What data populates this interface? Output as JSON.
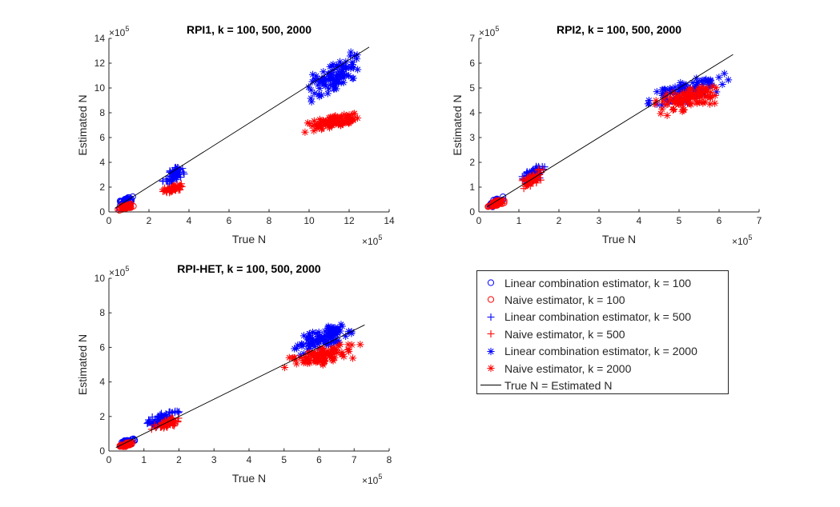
{
  "colors": {
    "linear": "#0000ff",
    "naive": "#ff0000",
    "line": "#000000",
    "axis": "#262626"
  },
  "legend": {
    "placement": "below-right",
    "entries": [
      {
        "label": "Linear combination estimator, k = 100",
        "marker": "circle",
        "color": "#0000ff"
      },
      {
        "label": "Naive estimator, k = 100",
        "marker": "circle",
        "color": "#ff0000"
      },
      {
        "label": "Linear combination estimator, k = 500",
        "marker": "plus",
        "color": "#0000ff"
      },
      {
        "label": "Naive estimator, k = 500",
        "marker": "plus",
        "color": "#ff0000"
      },
      {
        "label": "Linear combination estimator, k = 2000",
        "marker": "star",
        "color": "#0000ff"
      },
      {
        "label": "Naive estimator, k = 2000",
        "marker": "star",
        "color": "#ff0000"
      },
      {
        "label": "True N = Estimated N",
        "marker": "line",
        "color": "#000000"
      }
    ]
  },
  "chart_data": [
    {
      "type": "scatter",
      "title": "RPI1, k = 100, 500, 2000",
      "xlabel": "True N",
      "ylabel": "Estimated N",
      "xlim": [
        0,
        14
      ],
      "ylim": [
        0,
        14
      ],
      "xticks": [
        "0",
        "2",
        "4",
        "6",
        "8",
        "10",
        "12",
        "14"
      ],
      "yticks": [
        "0",
        "2",
        "4",
        "6",
        "8",
        "10",
        "12",
        "14"
      ],
      "x_exponent": "×10",
      "y_exponent": "×10",
      "exponent_power": "5",
      "grid": false,
      "diagonal": [
        [
          0.3,
          0.3
        ],
        [
          13.0,
          13.3
        ]
      ],
      "series": [
        {
          "name": "Linear combination estimator, k = 100",
          "marker": "circle",
          "color": "#0000ff",
          "x_range": [
            0.4,
            1.3
          ],
          "y_range": [
            0.1,
            1.55
          ],
          "count": 55
        },
        {
          "name": "Naive estimator, k = 100",
          "marker": "circle",
          "color": "#ff0000",
          "x_range": [
            0.4,
            1.3
          ],
          "y_range": [
            0.05,
            0.75
          ],
          "count": 55
        },
        {
          "name": "Linear combination estimator, k = 500",
          "marker": "plus",
          "color": "#0000ff",
          "x_range": [
            2.5,
            4.0
          ],
          "y_range": [
            1.7,
            4.2
          ],
          "count": 70
        },
        {
          "name": "Naive estimator, k = 500",
          "marker": "plus",
          "color": "#ff0000",
          "x_range": [
            2.5,
            4.0
          ],
          "y_range": [
            1.3,
            2.5
          ],
          "count": 70
        },
        {
          "name": "Linear combination estimator, k = 2000",
          "marker": "star",
          "color": "#0000ff",
          "x_range": [
            9.5,
            13.0
          ],
          "y_range": [
            8.0,
            13.8
          ],
          "count": 100
        },
        {
          "name": "Naive estimator, k = 2000",
          "marker": "star",
          "color": "#ff0000",
          "x_range": [
            9.3,
            13.0
          ],
          "y_range": [
            6.1,
            8.5
          ],
          "count": 100
        }
      ]
    },
    {
      "type": "scatter",
      "title": "RPI2, k = 100, 500, 2000",
      "xlabel": "True N",
      "ylabel": "Estimated N",
      "xlim": [
        0,
        7
      ],
      "ylim": [
        0,
        7
      ],
      "xticks": [
        "0",
        "1",
        "2",
        "3",
        "4",
        "5",
        "6",
        "7"
      ],
      "yticks": [
        "0",
        "1",
        "2",
        "3",
        "4",
        "5",
        "6",
        "7"
      ],
      "x_exponent": "×10",
      "y_exponent": "×10",
      "exponent_power": "5",
      "grid": false,
      "diagonal": [
        [
          0.2,
          0.2
        ],
        [
          6.35,
          6.35
        ]
      ],
      "series": [
        {
          "name": "Linear combination estimator, k = 100",
          "marker": "circle",
          "color": "#0000ff",
          "x_range": [
            0.2,
            0.7
          ],
          "y_range": [
            0.1,
            0.7
          ],
          "count": 50
        },
        {
          "name": "Naive estimator, k = 100",
          "marker": "circle",
          "color": "#ff0000",
          "x_range": [
            0.2,
            0.7
          ],
          "y_range": [
            0.1,
            0.6
          ],
          "count": 50
        },
        {
          "name": "Linear combination estimator, k = 500",
          "marker": "plus",
          "color": "#0000ff",
          "x_range": [
            1.0,
            1.7
          ],
          "y_range": [
            0.9,
            2.1
          ],
          "count": 60
        },
        {
          "name": "Naive estimator, k = 500",
          "marker": "plus",
          "color": "#ff0000",
          "x_range": [
            1.0,
            1.7
          ],
          "y_range": [
            0.8,
            1.9
          ],
          "count": 60
        },
        {
          "name": "Linear combination estimator, k = 2000",
          "marker": "star",
          "color": "#0000ff",
          "x_range": [
            4.0,
            6.4
          ],
          "y_range": [
            3.8,
            5.9
          ],
          "count": 100
        },
        {
          "name": "Naive estimator, k = 2000",
          "marker": "star",
          "color": "#ff0000",
          "x_range": [
            4.1,
            6.4
          ],
          "y_range": [
            3.6,
            5.5
          ],
          "count": 100
        }
      ]
    },
    {
      "type": "scatter",
      "title": "RPI-HET, k = 100, 500, 2000",
      "xlabel": "True N",
      "ylabel": "Estimated N",
      "xlim": [
        0,
        8
      ],
      "ylim": [
        0,
        10
      ],
      "xticks": [
        "0",
        "1",
        "2",
        "3",
        "4",
        "5",
        "6",
        "7",
        "8"
      ],
      "yticks": [
        "0",
        "2",
        "4",
        "6",
        "8",
        "10"
      ],
      "x_exponent": "×10",
      "y_exponent": "×10",
      "exponent_power": "5",
      "grid": false,
      "diagonal": [
        [
          0.2,
          0.2
        ],
        [
          7.3,
          7.3
        ]
      ],
      "series": [
        {
          "name": "Linear combination estimator, k = 100",
          "marker": "circle",
          "color": "#0000ff",
          "x_range": [
            0.25,
            0.8
          ],
          "y_range": [
            0.2,
            0.8
          ],
          "count": 50
        },
        {
          "name": "Naive estimator, k = 100",
          "marker": "circle",
          "color": "#ff0000",
          "x_range": [
            0.25,
            0.8
          ],
          "y_range": [
            0.15,
            0.6
          ],
          "count": 50
        },
        {
          "name": "Linear combination estimator, k = 500",
          "marker": "plus",
          "color": "#0000ff",
          "x_range": [
            0.9,
            2.2
          ],
          "y_range": [
            0.8,
            2.9
          ],
          "count": 70
        },
        {
          "name": "Naive estimator, k = 500",
          "marker": "plus",
          "color": "#ff0000",
          "x_range": [
            1.2,
            2.2
          ],
          "y_range": [
            1.0,
            2.2
          ],
          "count": 70
        },
        {
          "name": "Linear combination estimator, k = 2000",
          "marker": "star",
          "color": "#0000ff",
          "x_range": [
            5.0,
            7.2
          ],
          "y_range": [
            5.0,
            8.0
          ],
          "count": 100
        },
        {
          "name": "Naive estimator, k = 2000",
          "marker": "star",
          "color": "#ff0000",
          "x_range": [
            4.8,
            7.3
          ],
          "y_range": [
            4.3,
            6.6
          ],
          "count": 100
        }
      ]
    }
  ]
}
